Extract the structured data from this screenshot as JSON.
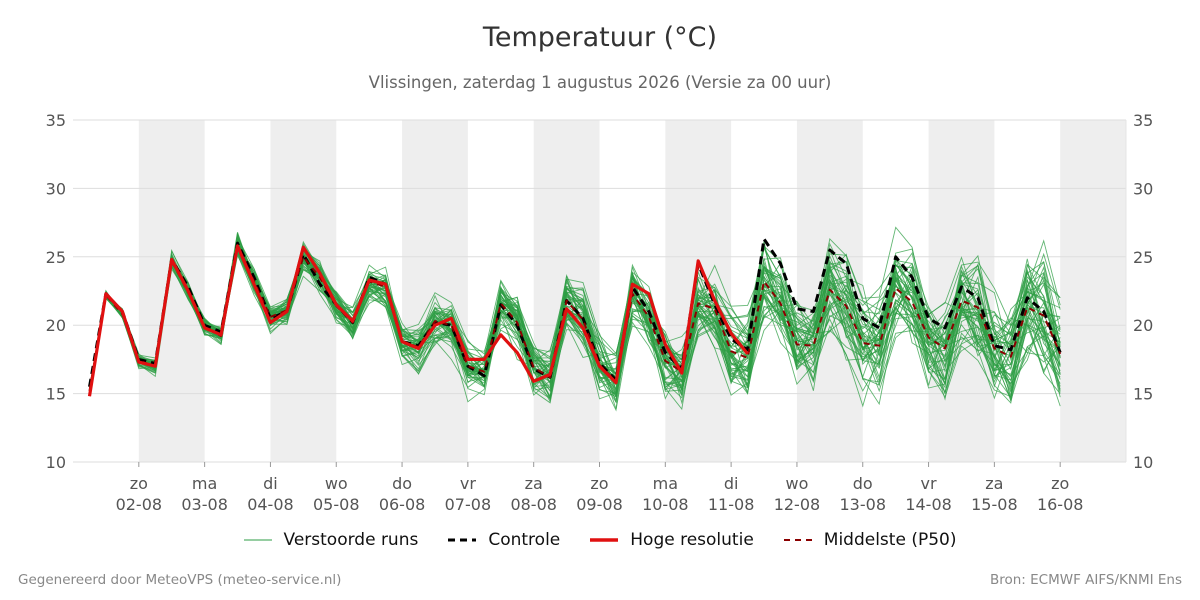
{
  "title": "Temperatuur (°C)",
  "subtitle": "Vlissingen, zaterdag  1 augustus 2026 (Versie za 00 uur)",
  "footer": {
    "left": "Gegenereerd door MeteoVPS (meteo-service.nl)",
    "right": "Bron: ECMWF AIFS/KNMI Ens"
  },
  "colors": {
    "ensemble": "#2e9e44",
    "control": "#000000",
    "high_res": "#e01010",
    "median": "#8b0000",
    "night_band": "#eeeeee",
    "grid": "#dddddd"
  },
  "chart_data": {
    "type": "line",
    "ylim": [
      10,
      35
    ],
    "yticks": [
      10,
      15,
      20,
      25,
      30,
      35
    ],
    "grid": true,
    "legend_position": "bottom",
    "x_start": "2026-08-01 06:00",
    "x_step_hours": 6,
    "xlim": [
      "2026-08-01",
      "2026-08-17"
    ],
    "shaded_days": [
      "2026-08-02",
      "2026-08-04",
      "2026-08-06",
      "2026-08-08",
      "2026-08-10",
      "2026-08-12",
      "2026-08-14",
      "2026-08-16"
    ],
    "x_tick_labels": [
      {
        "date": "2026-08-02",
        "day": "zo",
        "label": "02-08"
      },
      {
        "date": "2026-08-03",
        "day": "ma",
        "label": "03-08"
      },
      {
        "date": "2026-08-04",
        "day": "di",
        "label": "04-08"
      },
      {
        "date": "2026-08-05",
        "day": "wo",
        "label": "05-08"
      },
      {
        "date": "2026-08-06",
        "day": "do",
        "label": "06-08"
      },
      {
        "date": "2026-08-07",
        "day": "vr",
        "label": "07-08"
      },
      {
        "date": "2026-08-08",
        "day": "za",
        "label": "08-08"
      },
      {
        "date": "2026-08-09",
        "day": "zo",
        "label": "09-08"
      },
      {
        "date": "2026-08-10",
        "day": "ma",
        "label": "10-08"
      },
      {
        "date": "2026-08-11",
        "day": "di",
        "label": "11-08"
      },
      {
        "date": "2026-08-12",
        "day": "wo",
        "label": "12-08"
      },
      {
        "date": "2026-08-13",
        "day": "do",
        "label": "13-08"
      },
      {
        "date": "2026-08-14",
        "day": "vr",
        "label": "14-08"
      },
      {
        "date": "2026-08-15",
        "day": "za",
        "label": "15-08"
      },
      {
        "date": "2026-08-16",
        "day": "zo",
        "label": "16-08"
      }
    ],
    "series": [
      {
        "name": "Controle",
        "style": "dashed",
        "values": [
          15.5,
          22.3,
          21.0,
          17.5,
          17.2,
          24.8,
          22.8,
          20.0,
          19.5,
          26.0,
          23.5,
          20.5,
          21.0,
          25.2,
          23.0,
          21.5,
          20.2,
          23.5,
          23.0,
          18.8,
          18.5,
          20.2,
          20.0,
          17.0,
          16.3,
          21.5,
          20.0,
          16.8,
          16.2,
          21.8,
          20.5,
          17.2,
          16.0,
          22.8,
          21.0,
          18.0,
          16.8,
          24.5,
          21.5,
          19.0,
          18.2,
          26.3,
          24.5,
          21.2,
          21.0,
          25.5,
          24.5,
          20.5,
          19.8,
          25.0,
          23.5,
          20.5,
          19.8,
          22.8,
          22.0,
          18.5,
          18.2,
          22.0,
          21.0,
          18.0
        ]
      },
      {
        "name": "Hoge resolutie",
        "style": "solid",
        "values": [
          14.8,
          22.3,
          21.0,
          17.3,
          17.0,
          24.8,
          22.5,
          19.8,
          19.3,
          25.8,
          23.0,
          20.2,
          21.0,
          25.7,
          23.8,
          21.5,
          20.3,
          23.3,
          23.0,
          18.8,
          18.3,
          20.0,
          20.5,
          17.5,
          17.5,
          19.3,
          18.0,
          15.9,
          16.4,
          21.2,
          19.8,
          17.0,
          15.8,
          23.0,
          22.3,
          18.6,
          16.5,
          24.7,
          21.8,
          19.4,
          17.9
        ]
      },
      {
        "name": "Middelste (P50)",
        "style": "dashed",
        "values": [
          15.2,
          22.2,
          20.8,
          17.4,
          17.0,
          24.7,
          22.4,
          19.9,
          19.2,
          25.9,
          23.2,
          20.6,
          21.1,
          25.0,
          23.5,
          21.4,
          20.2,
          23.2,
          22.8,
          18.8,
          18.4,
          20.3,
          20.0,
          17.0,
          16.6,
          21.6,
          20.2,
          16.9,
          16.2,
          21.8,
          20.4,
          17.1,
          15.9,
          22.3,
          20.6,
          17.4,
          16.6,
          21.6,
          21.2,
          18.1,
          17.6,
          23.2,
          21.6,
          18.6,
          18.5,
          22.6,
          21.4,
          18.7,
          18.5,
          22.7,
          21.7,
          19.1,
          18.3,
          21.8,
          21.3,
          18.3,
          17.7,
          21.3,
          20.7,
          17.9
        ]
      },
      {
        "name": "Verstoorde runs",
        "style": "thin",
        "values": []
      }
    ]
  },
  "legend": [
    {
      "key": "ensemble",
      "label": "Verstoorde runs"
    },
    {
      "key": "control",
      "label": "Controle"
    },
    {
      "key": "high_res",
      "label": "Hoge resolutie"
    },
    {
      "key": "median",
      "label": "Middelste (P50)"
    }
  ]
}
